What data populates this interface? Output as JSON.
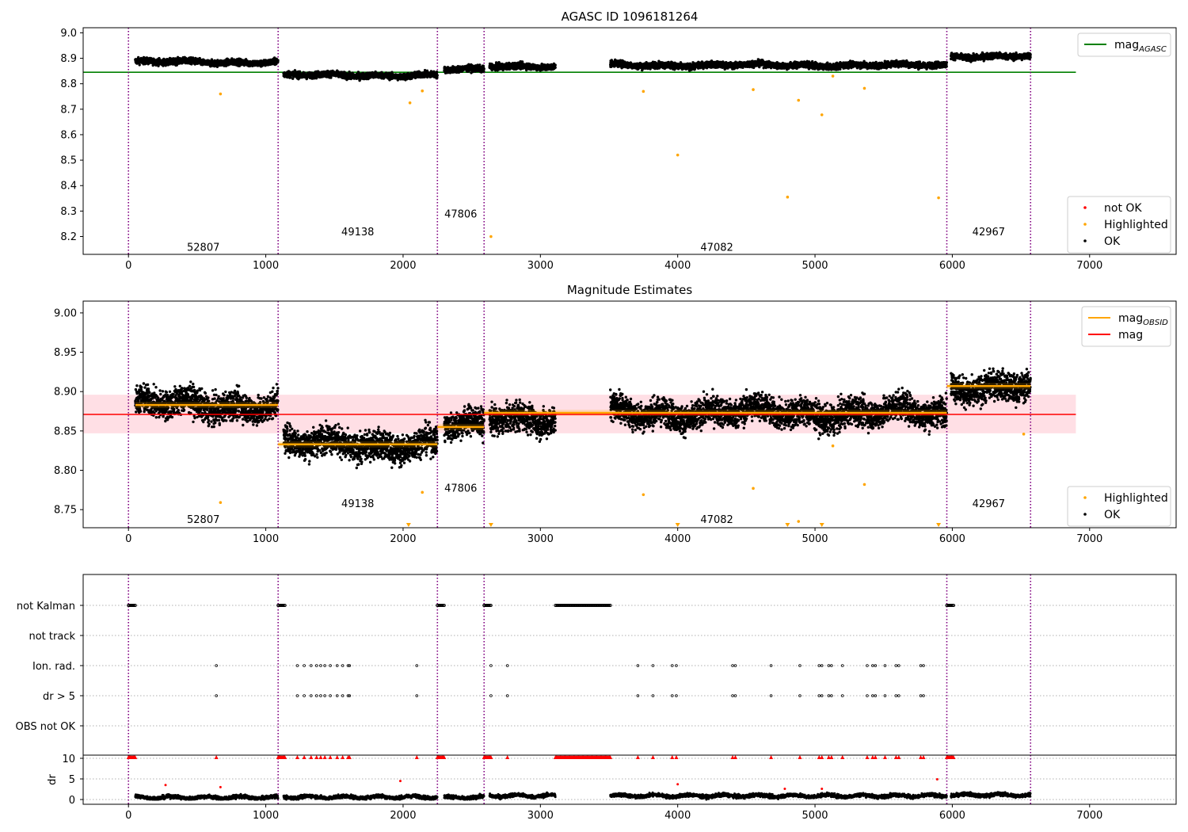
{
  "chart_data": [
    {
      "type": "scatter",
      "title": "AGASC ID 1096181264",
      "xlim": [
        -330,
        7630
      ],
      "ylim": [
        8.13,
        9.02
      ],
      "xticks": [
        0,
        1000,
        2000,
        3000,
        4000,
        5000,
        6000,
        7000
      ],
      "yticks": [
        8.2,
        8.3,
        8.4,
        8.5,
        8.6,
        8.7,
        8.8,
        8.9,
        9.0
      ],
      "legend_top": {
        "position": "upper-right",
        "entries": [
          {
            "label": "mag",
            "sub": "AGASC",
            "color": "#008000",
            "marker": "line"
          }
        ]
      },
      "legend_bottom": {
        "position": "lower-right",
        "entries": [
          {
            "label": "not OK",
            "color": "#ff0000",
            "marker": "dot"
          },
          {
            "label": "Highlighted",
            "color": "#ffa500",
            "marker": "dot"
          },
          {
            "label": "OK",
            "color": "#000000",
            "marker": "dot"
          }
        ]
      },
      "mag_agasc": {
        "value": 8.845,
        "x_range": [
          -330,
          6900
        ],
        "color": "#008000"
      },
      "obsid_boundaries": [
        0,
        1090,
        2250,
        2590,
        5960,
        6570
      ],
      "obsid_labels": [
        {
          "text": "52807",
          "x": 545,
          "y": 8.16
        },
        {
          "text": "49138",
          "x": 1670,
          "y": 8.22
        },
        {
          "text": "47806",
          "x": 2420,
          "y": 8.29
        },
        {
          "text": "47082",
          "x": 4285,
          "y": 8.16
        },
        {
          "text": "42967",
          "x": 6265,
          "y": 8.22
        }
      ],
      "series": [
        {
          "x_range": [
            50,
            1090
          ],
          "center": 8.885,
          "color": "#000000"
        },
        {
          "x_range": [
            1130,
            2250
          ],
          "center": 8.833,
          "color": "#000000"
        },
        {
          "x_range": [
            2300,
            2590
          ],
          "center": 8.855,
          "color": "#000000"
        },
        {
          "x_range": [
            2630,
            3110
          ],
          "center": 8.87,
          "color": "#000000"
        },
        {
          "x_range": [
            3510,
            5960
          ],
          "center": 8.873,
          "color": "#000000"
        },
        {
          "x_range": [
            5990,
            6570
          ],
          "center": 8.908,
          "color": "#000000"
        }
      ],
      "highlighted_outliers": [
        {
          "x": 670,
          "y": 8.76
        },
        {
          "x": 2050,
          "y": 8.725
        },
        {
          "x": 2140,
          "y": 8.772
        },
        {
          "x": 2640,
          "y": 8.2
        },
        {
          "x": 3750,
          "y": 8.77
        },
        {
          "x": 4000,
          "y": 8.52
        },
        {
          "x": 4550,
          "y": 8.777
        },
        {
          "x": 4800,
          "y": 8.355
        },
        {
          "x": 4880,
          "y": 8.735
        },
        {
          "x": 5050,
          "y": 8.678
        },
        {
          "x": 5130,
          "y": 8.83
        },
        {
          "x": 5360,
          "y": 8.782
        },
        {
          "x": 5900,
          "y": 8.352
        }
      ]
    },
    {
      "type": "scatter",
      "title": "Magnitude Estimates",
      "xlim": [
        -330,
        7630
      ],
      "ylim": [
        8.727,
        9.015
      ],
      "xticks": [
        0,
        1000,
        2000,
        3000,
        4000,
        5000,
        6000,
        7000
      ],
      "yticks": [
        8.75,
        8.8,
        8.85,
        8.9,
        8.95,
        9.0
      ],
      "legend_top": {
        "position": "upper-right",
        "entries": [
          {
            "label": "mag",
            "sub": "OBSID",
            "color": "#ffa500",
            "marker": "line"
          },
          {
            "label": "mag",
            "sub": "",
            "color": "#ff0000",
            "marker": "line"
          }
        ]
      },
      "legend_bottom": {
        "position": "lower-right",
        "entries": [
          {
            "label": "Highlighted",
            "color": "#ffa500",
            "marker": "dot"
          },
          {
            "label": "OK",
            "color": "#000000",
            "marker": "dot"
          }
        ]
      },
      "mag": {
        "value": 8.871,
        "band": [
          8.847,
          8.896
        ],
        "x_range": [
          -330,
          6900
        ],
        "color": "#ff0000"
      },
      "mag_obsid": [
        {
          "x_range": [
            50,
            1090
          ],
          "value": 8.883
        },
        {
          "x_range": [
            1090,
            2250
          ],
          "value": 8.833
        },
        {
          "x_range": [
            2250,
            2590
          ],
          "value": 8.855
        },
        {
          "x_range": [
            2590,
            5960
          ],
          "value": 8.873
        },
        {
          "x_range": [
            5960,
            6570
          ],
          "value": 8.907
        }
      ],
      "obsid_boundaries": [
        0,
        1090,
        2250,
        2590,
        5960,
        6570
      ],
      "obsid_labels": [
        {
          "text": "52807",
          "x": 545,
          "y": 8.738
        },
        {
          "text": "49138",
          "x": 1670,
          "y": 8.758
        },
        {
          "text": "47806",
          "x": 2420,
          "y": 8.778
        },
        {
          "text": "47082",
          "x": 4285,
          "y": 8.738
        },
        {
          "text": "42967",
          "x": 6265,
          "y": 8.758
        }
      ],
      "series": [
        {
          "x_range": [
            50,
            1090
          ],
          "center": 8.883,
          "color": "#000000"
        },
        {
          "x_range": [
            1130,
            2250
          ],
          "center": 8.833,
          "color": "#000000"
        },
        {
          "x_range": [
            2300,
            2590
          ],
          "center": 8.855,
          "color": "#000000"
        },
        {
          "x_range": [
            2630,
            3110
          ],
          "center": 8.868,
          "color": "#000000"
        },
        {
          "x_range": [
            3510,
            5960
          ],
          "center": 8.873,
          "color": "#000000"
        },
        {
          "x_range": [
            5990,
            6570
          ],
          "center": 8.907,
          "color": "#000000"
        }
      ],
      "highlighted_outliers": [
        {
          "x": 670,
          "y": 8.759
        },
        {
          "x": 2140,
          "y": 8.772
        },
        {
          "x": 3750,
          "y": 8.769
        },
        {
          "x": 4550,
          "y": 8.777
        },
        {
          "x": 5130,
          "y": 8.831
        },
        {
          "x": 5360,
          "y": 8.782
        },
        {
          "x": 6520,
          "y": 8.846
        },
        {
          "x": 4880,
          "y": 8.735
        }
      ],
      "clipped_markers_x": [
        2040,
        2640,
        4000,
        4800,
        5050,
        5900
      ]
    },
    {
      "type": "scatter",
      "title": "",
      "xlim": [
        -330,
        7630
      ],
      "xticks": [
        0,
        1000,
        2000,
        3000,
        4000,
        5000,
        6000,
        7000
      ],
      "flag_rows": [
        "not Kalman",
        "not track",
        "Ion. rad.",
        "dr > 5",
        "OBS not OK"
      ],
      "not_kalman_ranges": [
        [
          0,
          50
        ],
        [
          1090,
          1140
        ],
        [
          2250,
          2300
        ],
        [
          2590,
          2640
        ],
        [
          3110,
          3510
        ],
        [
          5960,
          6010
        ]
      ],
      "ion_rad_x": [
        640,
        1230,
        1280,
        1330,
        1370,
        1400,
        1430,
        1470,
        1520,
        1560,
        1600,
        1610,
        2100,
        2640,
        2760,
        3710,
        3820,
        3960,
        3990,
        4400,
        4420,
        4680,
        4890,
        5030,
        5050,
        5100,
        5120,
        5200,
        5380,
        5420,
        5440,
        5510,
        5590,
        5610,
        5770,
        5790
      ],
      "dr_row": {
        "ylabel": "dr",
        "yticks": [
          0,
          5,
          10
        ],
        "ylim": [
          -0.3,
          10.3
        ],
        "clip_value": 10
      },
      "dr_series": [
        {
          "x_range": [
            50,
            1090
          ],
          "center": 0.5
        },
        {
          "x_range": [
            1130,
            2250
          ],
          "center": 0.6
        },
        {
          "x_range": [
            2300,
            2590
          ],
          "center": 0.5
        },
        {
          "x_range": [
            2630,
            3110
          ],
          "center": 0.9
        },
        {
          "x_range": [
            3510,
            5960
          ],
          "center": 0.9
        },
        {
          "x_range": [
            5990,
            6570
          ],
          "center": 1.1
        }
      ],
      "dr_outliers": [
        {
          "x": 270,
          "y": 3.5
        },
        {
          "x": 670,
          "y": 3.0
        },
        {
          "x": 1980,
          "y": 4.5
        },
        {
          "x": 4000,
          "y": 3.7
        },
        {
          "x": 4780,
          "y": 2.6
        },
        {
          "x": 5050,
          "y": 2.6
        },
        {
          "x": 5890,
          "y": 4.9
        }
      ],
      "obsid_boundaries": [
        0,
        1090,
        2250,
        2590,
        5960,
        6570
      ]
    }
  ]
}
